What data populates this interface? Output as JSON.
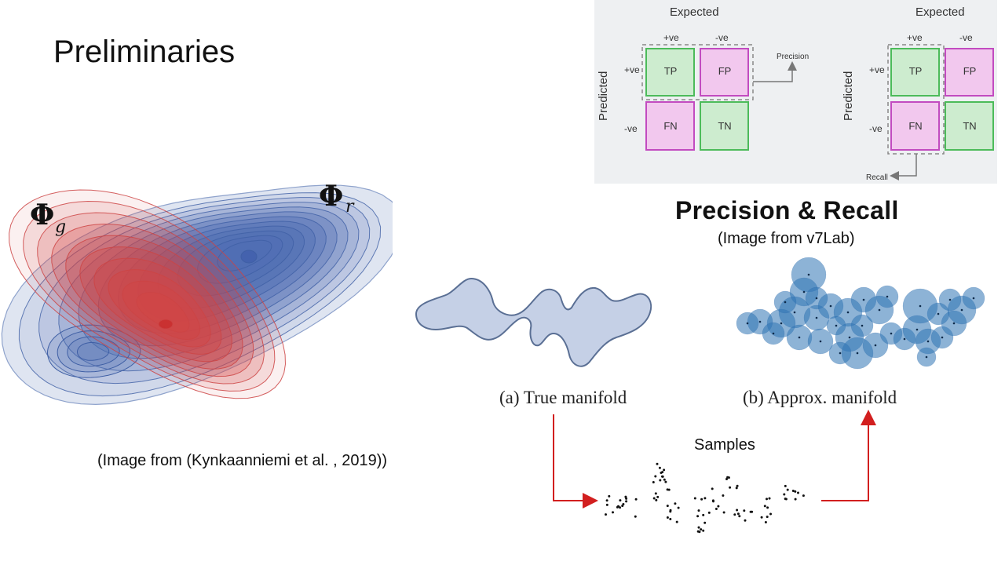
{
  "slide": {
    "title": "Preliminaries"
  },
  "contour_figure": {
    "label_g": "Φ",
    "label_g_sub": "g",
    "label_r": "Φ",
    "label_r_sub": "r",
    "caption": "(Image from  (Kynkaanniemi et al. , 2019))",
    "colors": {
      "real": "#3f5fa5",
      "generated": "#cc4444"
    }
  },
  "confusion": {
    "left": {
      "expected": "Expected",
      "predicted": "Predicted",
      "col_pos": "+ve",
      "col_neg": "-ve",
      "row_pos": "+ve",
      "row_neg": "-ve",
      "tp": "TP",
      "fp": "FP",
      "fn": "FN",
      "tn": "TN",
      "metric": "Precision"
    },
    "right": {
      "expected": "Expected",
      "predicted": "Predicted",
      "col_pos": "+ve",
      "col_neg": "-ve",
      "row_pos": "+ve",
      "row_neg": "-ve",
      "tp": "TP",
      "fp": "FP",
      "fn": "FN",
      "tn": "TN",
      "metric": "Recall"
    },
    "colors": {
      "green_fill": "#cdeccf",
      "green_border": "#4cbb5a",
      "pink_fill": "#f2c8ee",
      "pink_border": "#c24bc0"
    }
  },
  "precision_recall": {
    "title": "Precision & Recall",
    "source": "(Image from v7Lab)"
  },
  "manifold": {
    "true_caption": "(a) True manifold",
    "approx_caption": "(b) Approx. manifold",
    "samples_label": "Samples",
    "colors": {
      "manifold_fill": "#c5d0e6",
      "manifold_stroke": "#5a6f94",
      "ball": "#2f75b5",
      "arrow": "#d21f1f"
    }
  }
}
